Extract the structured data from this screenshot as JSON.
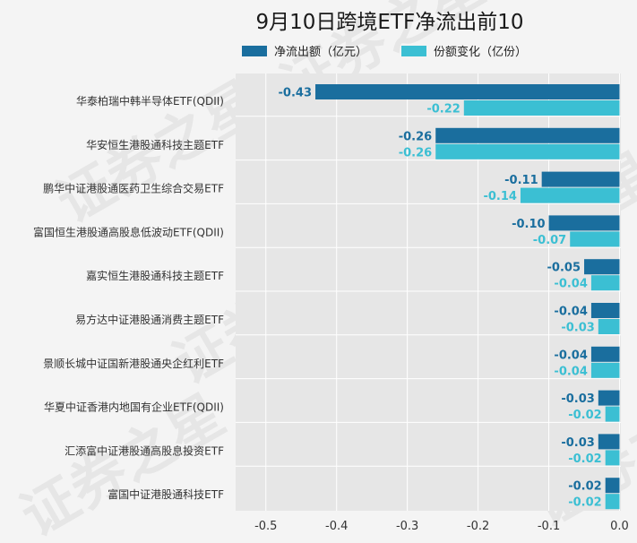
{
  "chart_data": {
    "type": "bar",
    "orientation": "horizontal",
    "title": "9月10日跨境ETF净流出前10",
    "categories": [
      "华泰柏瑞中韩半导体ETF(QDII)",
      "华安恒生港股通科技主题ETF",
      "鹏华中证港股通医药卫生综合交易ETF",
      "富国恒生港股通高股息低波动ETF(QDII)",
      "嘉实恒生港股通科技主题ETF",
      "易方达中证港股通消费主题ETF",
      "景顺长城中证国新港股通央企红利ETF",
      "华夏中证香港内地国有企业ETF(QDII)",
      "汇添富中证港股通高股息投资ETF",
      "富国中证港股通科技ETF"
    ],
    "series": [
      {
        "name": "净流出额（亿元）",
        "color": "#1a6e9e",
        "values": [
          -0.43,
          -0.26,
          -0.11,
          -0.1,
          -0.05,
          -0.04,
          -0.04,
          -0.03,
          -0.03,
          -0.02
        ],
        "labels": [
          "-0.43",
          "-0.26",
          "-0.11",
          "-0.10",
          "-0.05",
          "-0.04",
          "-0.04",
          "-0.03",
          "-0.03",
          "-0.02"
        ]
      },
      {
        "name": "份额变化（亿份）",
        "color": "#3bbfd3",
        "values": [
          -0.22,
          -0.26,
          -0.14,
          -0.07,
          -0.04,
          -0.03,
          -0.04,
          -0.02,
          -0.02,
          -0.02
        ],
        "labels": [
          "-0.22",
          "-0.26",
          "-0.14",
          "-0.07",
          "-0.04",
          "-0.03",
          "-0.04",
          "-0.02",
          "-0.02",
          "-0.02"
        ]
      }
    ],
    "xlim": [
      -0.55,
      0
    ],
    "xticks": [
      -0.5,
      -0.4,
      -0.3,
      -0.2,
      -0.1,
      0.0
    ],
    "xtick_labels": [
      "-0.5",
      "-0.4",
      "-0.3",
      "-0.2",
      "-0.1",
      "0.0"
    ],
    "grid": true,
    "legend_position": "top",
    "watermark": "证券之星"
  }
}
